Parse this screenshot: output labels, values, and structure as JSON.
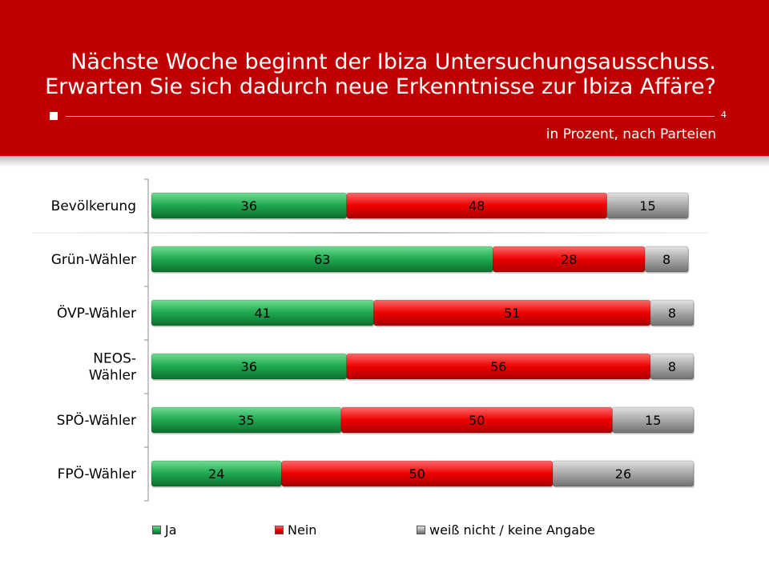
{
  "header": {
    "title_line1": "Nächste Woche beginnt der Ibiza Untersuchungsausschuss.",
    "title_line2": "Erwarten Sie sich dadurch neue Erkenntnisse zur Ibiza Affäre?",
    "page_number": "4",
    "subtitle": "in Prozent, nach Parteien"
  },
  "colors": {
    "header_bg": "#c00000",
    "ja": "#1a9e4a",
    "nein": "#e60000",
    "weiss_nicht": "#a6a6a6"
  },
  "chart_data": {
    "type": "bar",
    "orientation": "horizontal",
    "stacked": true,
    "categories": [
      "Bevölkerung",
      "Grün-Wähler",
      "ÖVP-Wähler",
      "NEOS-\nWähler",
      "SPÖ-Wähler",
      "FPÖ-Wähler"
    ],
    "series": [
      {
        "name": "Ja",
        "values": [
          36,
          63,
          41,
          36,
          35,
          24
        ]
      },
      {
        "name": "Nein",
        "values": [
          48,
          28,
          51,
          56,
          50,
          50
        ]
      },
      {
        "name": "weiß nicht / keine Angabe",
        "values": [
          15,
          8,
          8,
          8,
          15,
          26
        ]
      }
    ],
    "xlim": [
      0,
      100
    ],
    "data_labels": true,
    "legend_position": "bottom",
    "grid": false
  }
}
